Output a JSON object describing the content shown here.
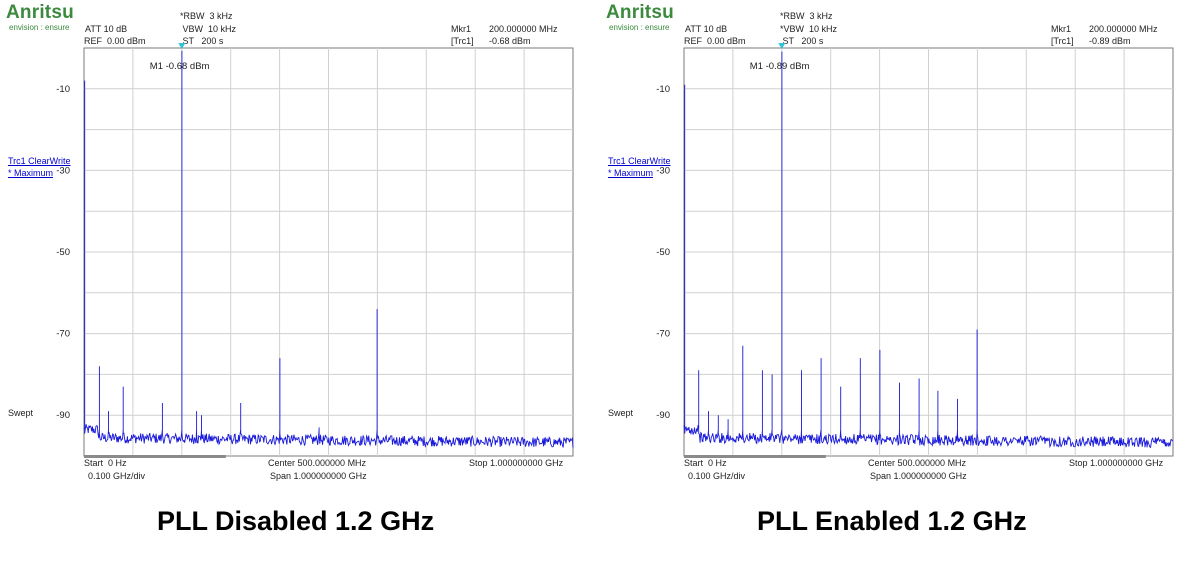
{
  "panels": [
    {
      "brand": "Anritsu",
      "tagline": "envision : ensure",
      "att": "ATT 10 dB",
      "ref": "REF  0.00 dBm",
      "rbw": "*RBW  3 kHz",
      "vbw": " VBW  10 kHz",
      "st": " ST   200 s",
      "mkr_label": "Mkr1",
      "mkr_freq": "200.000000 MHz",
      "trc": "[Trc1]",
      "mkr_level": "-0.68 dBm",
      "marker_text": "M1 -0.68 dBm",
      "trace_label": "Trc1 ClearWrite",
      "trace_mode": "* Maximum",
      "swept": "Swept",
      "start": "Start  0 Hz",
      "div": "0.100 GHz/div",
      "center": "Center 500.000000 MHz",
      "span": "Span 1.000000000 GHz",
      "stop": "Stop 1.000000000 GHz",
      "caption": "PLL Disabled 1.2 GHz"
    },
    {
      "brand": "Anritsu",
      "tagline": "envision : ensure",
      "att": "ATT 10 dB",
      "ref": "REF  0.00 dBm",
      "rbw": "*RBW  3 kHz",
      "vbw": "*VBW  10 kHz",
      "st": " ST   200 s",
      "mkr_label": "Mkr1",
      "mkr_freq": "200.000000 MHz",
      "trc": "[Trc1]",
      "mkr_level": "-0.89 dBm",
      "marker_text": "M1 -0.89 dBm",
      "trace_label": "Trc1 ClearWrite",
      "trace_mode": "* Maximum",
      "swept": "Swept",
      "start": "Start  0 Hz",
      "div": "0.100 GHz/div",
      "center": "Center 500.000000 MHz",
      "span": "Span 1.000000000 GHz",
      "stop": "Stop 1.000000000 GHz",
      "caption": "PLL Enabled 1.2 GHz"
    }
  ],
  "chart_data": [
    {
      "type": "line",
      "title": "PLL Disabled 1.2 GHz",
      "xlabel": "",
      "ylabel": "",
      "x_unit": "MHz",
      "y_unit": "dBm",
      "xlim": [
        0,
        1000
      ],
      "ylim": [
        -100,
        0
      ],
      "y_ticks": [
        -10,
        -30,
        -50,
        -70,
        -90
      ],
      "grid": true,
      "trace_color": "#1a1adb",
      "noise_floor": -95.5,
      "marker": {
        "name": "M1",
        "x": 200,
        "y": -0.68
      },
      "peaks": [
        {
          "x": 2,
          "y": -8
        },
        {
          "x": 32,
          "y": -78
        },
        {
          "x": 50,
          "y": -89
        },
        {
          "x": 80,
          "y": -83
        },
        {
          "x": 160,
          "y": -87
        },
        {
          "x": 200,
          "y": -0.68
        },
        {
          "x": 230,
          "y": -89
        },
        {
          "x": 240,
          "y": -90
        },
        {
          "x": 320,
          "y": -87
        },
        {
          "x": 400,
          "y": -76
        },
        {
          "x": 480,
          "y": -93
        },
        {
          "x": 600,
          "y": -64
        }
      ]
    },
    {
      "type": "line",
      "title": "PLL Enabled 1.2 GHz",
      "xlabel": "",
      "ylabel": "",
      "x_unit": "MHz",
      "y_unit": "dBm",
      "xlim": [
        0,
        1000
      ],
      "ylim": [
        -100,
        0
      ],
      "y_ticks": [
        -10,
        -30,
        -50,
        -70,
        -90
      ],
      "grid": true,
      "trace_color": "#1a1adb",
      "noise_floor": -95.5,
      "marker": {
        "name": "M1",
        "x": 200,
        "y": -0.89
      },
      "peaks": [
        {
          "x": 2,
          "y": -9
        },
        {
          "x": 30,
          "y": -79
        },
        {
          "x": 50,
          "y": -89
        },
        {
          "x": 70,
          "y": -90
        },
        {
          "x": 90,
          "y": -91
        },
        {
          "x": 120,
          "y": -73
        },
        {
          "x": 160,
          "y": -79
        },
        {
          "x": 180,
          "y": -80
        },
        {
          "x": 200,
          "y": -0.89
        },
        {
          "x": 240,
          "y": -79
        },
        {
          "x": 280,
          "y": -76
        },
        {
          "x": 320,
          "y": -83
        },
        {
          "x": 360,
          "y": -76
        },
        {
          "x": 400,
          "y": -74
        },
        {
          "x": 440,
          "y": -82
        },
        {
          "x": 480,
          "y": -81
        },
        {
          "x": 520,
          "y": -84
        },
        {
          "x": 560,
          "y": -86
        },
        {
          "x": 600,
          "y": -69
        }
      ]
    }
  ]
}
